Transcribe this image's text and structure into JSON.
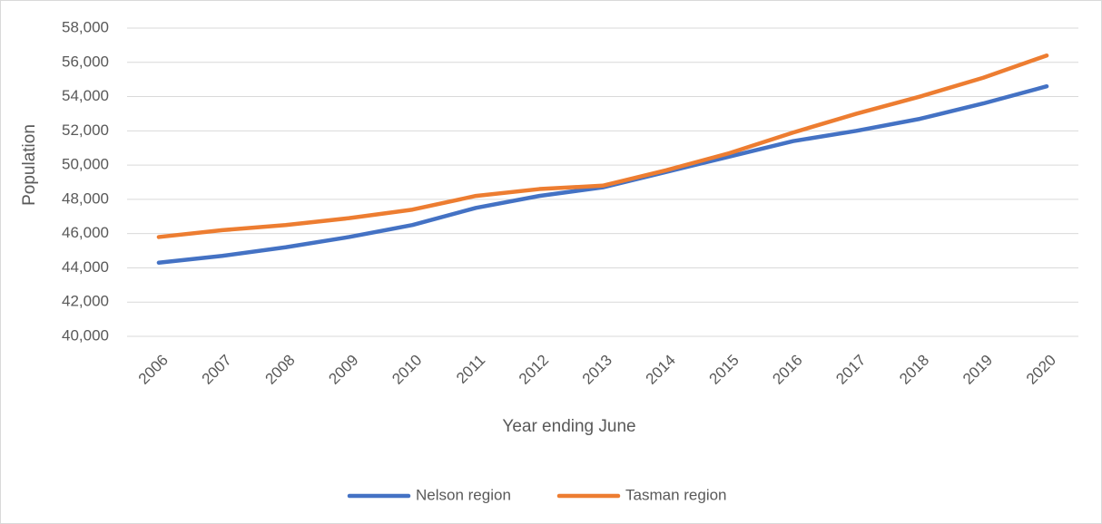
{
  "chart_data": {
    "type": "line",
    "x_label": "Year ending June",
    "y_label": "Population",
    "categories": [
      "2006",
      "2007",
      "2008",
      "2009",
      "2010",
      "2011",
      "2012",
      "2013",
      "2014",
      "2015",
      "2016",
      "2017",
      "2018",
      "2019",
      "2020"
    ],
    "series": [
      {
        "name": "Nelson region",
        "color": "#4472c4",
        "values": [
          44300,
          44700,
          45200,
          45800,
          46500,
          47500,
          48200,
          48700,
          49600,
          50500,
          51400,
          52000,
          52700,
          53600,
          54600
        ]
      },
      {
        "name": "Tasman region",
        "color": "#ed7d31",
        "values": [
          45800,
          46200,
          46500,
          46900,
          47400,
          48200,
          48600,
          48800,
          49700,
          50700,
          51900,
          53000,
          54000,
          55100,
          56400
        ]
      }
    ],
    "ylim": [
      40000,
      58000
    ],
    "yticks": [
      {
        "value": 40000,
        "label": "40,000"
      },
      {
        "value": 42000,
        "label": "42,000"
      },
      {
        "value": 44000,
        "label": "44,000"
      },
      {
        "value": 46000,
        "label": "46,000"
      },
      {
        "value": 48000,
        "label": "48,000"
      },
      {
        "value": 50000,
        "label": "50,000"
      },
      {
        "value": 52000,
        "label": "52,000"
      },
      {
        "value": 54000,
        "label": "54,000"
      },
      {
        "value": 56000,
        "label": "56,000"
      },
      {
        "value": 58000,
        "label": "58,000"
      }
    ],
    "grid": true,
    "legend": "bottom"
  }
}
